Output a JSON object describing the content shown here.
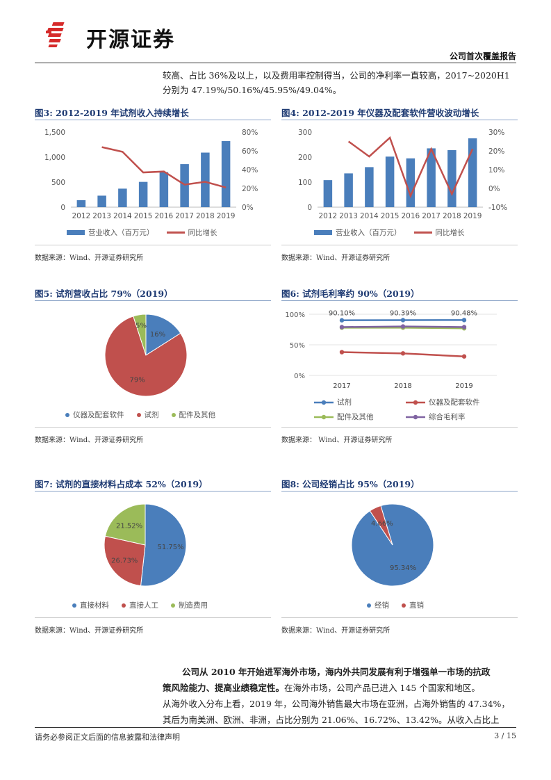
{
  "header": {
    "brand": "开源证券",
    "report_type": "公司首次覆盖报告"
  },
  "intro": {
    "line1": "较高、占比 36%及以上，以及费用率控制得当，公司的净利率一直较高，2017~2020H1",
    "line2": "分别为 47.19%/50.16%/45.95%/49.04%。"
  },
  "figures": {
    "fig3": {
      "label": "图3:",
      "title": "2012-2019 年试剂收入持续增长",
      "source": "数据来源：Wind、开源证券研究所",
      "legend": [
        "营业收入（百万元）",
        "同比增长"
      ]
    },
    "fig4": {
      "label": "图4:",
      "title": "2012-2019 年仪器及配套软件营收波动增长",
      "source": "数据来源：Wind、开源证券研究所",
      "legend": [
        "营业收入（百万元）",
        "同比增长"
      ]
    },
    "fig5": {
      "label": "图5:",
      "title": "试剂营收占比 79%（2019）",
      "source": "数据来源：Wind、开源证券研究所",
      "legend": [
        "仪器及配套软件",
        "试剂",
        "配件及其他"
      ]
    },
    "fig6": {
      "label": "图6:",
      "title": "试剂毛利率约 90%（2019）",
      "source": "数据来源：  Wind、开源证券研究所",
      "legend": [
        "试剂",
        "仪器及配套软件",
        "配件及其他",
        "综合毛利率"
      ]
    },
    "fig7": {
      "label": "图7:",
      "title": "试剂的直接材料占成本 52%（2019）",
      "source": "数据来源：Wind、开源证券研究所",
      "legend": [
        "直接材料",
        "直接人工",
        "制造费用"
      ]
    },
    "fig8": {
      "label": "图8:",
      "title": "公司经销占比 95%（2019）",
      "source": "数据来源：Wind、开源证券研究所",
      "legend": [
        "经销",
        "直销"
      ]
    }
  },
  "chart_data": [
    {
      "id": "fig3",
      "type": "bar",
      "categories": [
        "2012",
        "2013",
        "2014",
        "2015",
        "2016",
        "2017",
        "2018",
        "2019"
      ],
      "series": [
        {
          "name": "营业收入（百万元）",
          "type": "bar",
          "axis": "left",
          "values": [
            140,
            230,
            370,
            505,
            700,
            860,
            1090,
            1320
          ]
        },
        {
          "name": "同比增长",
          "type": "line",
          "axis": "right",
          "values": [
            null,
            64,
            59,
            37,
            38,
            24,
            27,
            21
          ]
        }
      ],
      "y_left": {
        "min": 0,
        "max": 1500,
        "ticks": [
          "0",
          "500",
          "1,000",
          "1,500"
        ],
        "tick_values": [
          0,
          500,
          1000,
          1500
        ]
      },
      "y_right": {
        "min": 0,
        "max": 80,
        "ticks": [
          "0%",
          "20%",
          "40%",
          "60%",
          "80%"
        ],
        "tick_values": [
          0,
          20,
          40,
          60,
          80
        ]
      },
      "colors": {
        "bar": "#4a7ebb",
        "line": "#c0504d"
      }
    },
    {
      "id": "fig4",
      "type": "bar",
      "categories": [
        "2012",
        "2013",
        "2014",
        "2015",
        "2016",
        "2017",
        "2018",
        "2019"
      ],
      "series": [
        {
          "name": "营业收入（百万元）",
          "type": "bar",
          "axis": "left",
          "values": [
            108,
            135,
            160,
            202,
            195,
            235,
            228,
            275
          ]
        },
        {
          "name": "同比增长",
          "type": "line",
          "axis": "right",
          "values": [
            null,
            25,
            17,
            27,
            -4,
            21,
            -3,
            21
          ]
        }
      ],
      "y_left": {
        "min": 0,
        "max": 300,
        "ticks": [
          "0",
          "100",
          "200",
          "300"
        ],
        "tick_values": [
          0,
          100,
          200,
          300
        ]
      },
      "y_right": {
        "min": -10,
        "max": 30,
        "ticks": [
          "-10%",
          "0%",
          "10%",
          "20%",
          "30%"
        ],
        "tick_values": [
          -10,
          0,
          10,
          20,
          30
        ]
      },
      "colors": {
        "bar": "#4a7ebb",
        "line": "#c0504d"
      }
    },
    {
      "id": "fig5",
      "type": "pie",
      "labels": [
        "仪器及配套软件",
        "试剂",
        "配件及其他"
      ],
      "values": [
        16,
        79,
        5
      ],
      "value_labels": [
        "16%",
        "79%",
        "5%"
      ],
      "colors": [
        "#4a7ebb",
        "#c0504d",
        "#9bbb59"
      ]
    },
    {
      "id": "fig6",
      "type": "line",
      "categories": [
        "2017",
        "2018",
        "2019"
      ],
      "series": [
        {
          "name": "试剂",
          "values": [
            90.1,
            90.39,
            90.48
          ],
          "color": "#4a7ebb"
        },
        {
          "name": "仪器及配套软件",
          "values": [
            38,
            36,
            31
          ],
          "color": "#c0504d"
        },
        {
          "name": "配件及其他",
          "values": [
            78,
            78,
            77
          ],
          "color": "#9bbb59"
        },
        {
          "name": "综合毛利率",
          "values": [
            79,
            80,
            79
          ],
          "color": "#8064a2"
        }
      ],
      "data_labels": [
        "90.10%",
        "90.39%",
        "90.48%"
      ],
      "y": {
        "min": 0,
        "max": 100,
        "ticks": [
          "0%",
          "50%",
          "100%"
        ],
        "tick_values": [
          0,
          50,
          100
        ]
      }
    },
    {
      "id": "fig7",
      "type": "pie",
      "labels": [
        "直接材料",
        "直接人工",
        "制造费用"
      ],
      "values": [
        51.75,
        26.73,
        21.52
      ],
      "value_labels": [
        "51.75%",
        "26.73%",
        "21.52%"
      ],
      "colors": [
        "#4a7ebb",
        "#c0504d",
        "#9bbb59"
      ]
    },
    {
      "id": "fig8",
      "type": "pie",
      "labels": [
        "经销",
        "直销"
      ],
      "values": [
        95.34,
        4.66
      ],
      "value_labels": [
        "95.34%",
        "4.66%"
      ],
      "colors": [
        "#4a7ebb",
        "#c0504d"
      ]
    }
  ],
  "body": {
    "p1_bold_line1": "公司从 2010 年开始进军海外市场，海内外共同发展有利于增强单一市场的抗政",
    "p1_bold_line2": "策风险能力、提高业绩稳定性。",
    "p1_rest_line2": "在海外市场，公司产品已进入 145 个国家和地区。",
    "p1_line3": "从海外收入分布上看，2019 年，公司海外销售最大市场在亚洲，占海外销售的 47.34%，",
    "p1_line4": "其后为南美洲、欧洲、非洲，占比分别为 21.06%、16.72%、13.42%。从收入占比上"
  },
  "footer": {
    "disclaimer": "请务必参阅正文后面的信息披露和法律声明",
    "page": "3 / 15"
  }
}
